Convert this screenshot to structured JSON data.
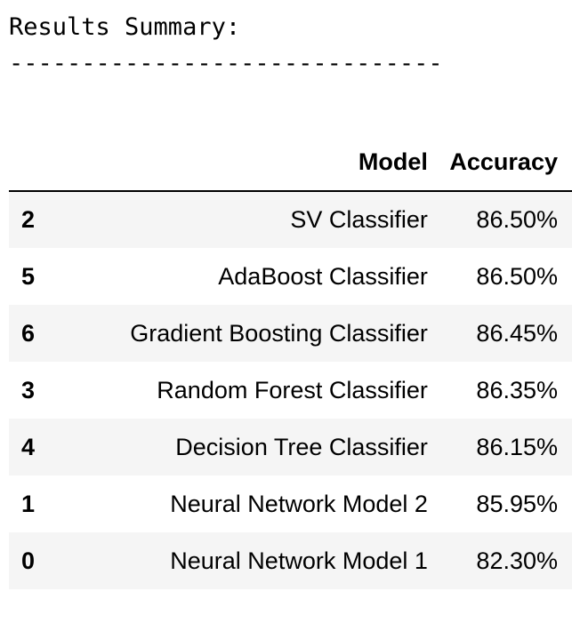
{
  "output": {
    "heading": "Results Summary:",
    "separator": "------------------------------"
  },
  "table": {
    "columns": [
      "",
      "Model",
      "Accuracy"
    ],
    "rows": [
      {
        "index": "2",
        "model": "SV Classifier",
        "accuracy": "86.50%"
      },
      {
        "index": "5",
        "model": "AdaBoost Classifier",
        "accuracy": "86.50%"
      },
      {
        "index": "6",
        "model": "Gradient Boosting Classifier",
        "accuracy": "86.45%"
      },
      {
        "index": "3",
        "model": "Random Forest Classifier",
        "accuracy": "86.35%"
      },
      {
        "index": "4",
        "model": "Decision Tree Classifier",
        "accuracy": "86.15%"
      },
      {
        "index": "1",
        "model": "Neural Network Model 2",
        "accuracy": "85.95%"
      },
      {
        "index": "0",
        "model": "Neural Network Model 1",
        "accuracy": "82.30%"
      }
    ]
  },
  "colors": {
    "row_stripe": "#f5f5f5",
    "header_rule": "#000000",
    "text": "#000000"
  }
}
